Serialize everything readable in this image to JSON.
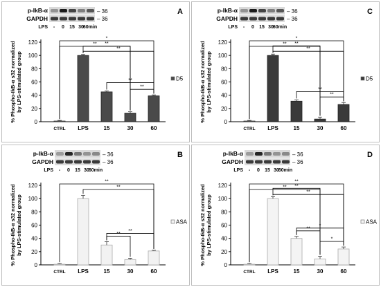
{
  "blot": {
    "phospho_label": "p-IkB-α",
    "gapdh_label": "GAPDH",
    "marker": "– 36",
    "lps_label": "LPS",
    "lanes": [
      "-",
      "0",
      "15",
      "30",
      "60min"
    ]
  },
  "chart_data": [
    {
      "panel": "A",
      "type": "bar",
      "categories": [
        "CTRL",
        "LPS",
        "15",
        "30",
        "60"
      ],
      "values": [
        1,
        100,
        45,
        13,
        39
      ],
      "errors": [
        1,
        1.5,
        1.5,
        2,
        1.5
      ],
      "ylabel": "% Phospho-IkB-α s32 normalized by LPS-stimulated group",
      "ylim": [
        0,
        120
      ],
      "yticks": [
        0,
        20,
        40,
        60,
        80,
        100,
        120
      ],
      "legend": "D5",
      "legend_position": "right",
      "bar_color": "#4a4a4a",
      "significance": [
        {
          "from": 0,
          "to": 4,
          "label": "*"
        },
        {
          "from": 0,
          "to": 3,
          "label": "**"
        },
        {
          "from": 1,
          "to": 4,
          "label": "**"
        },
        {
          "from": 1,
          "to": 3,
          "label": "**"
        },
        {
          "from": 2,
          "to": 4,
          "label": "**"
        },
        {
          "from": 3,
          "to": 4,
          "label": "**"
        }
      ]
    },
    {
      "panel": "B",
      "type": "bar",
      "categories": [
        "CTRL",
        "LPS",
        "15",
        "30",
        "60"
      ],
      "values": [
        1,
        100,
        30,
        8,
        21
      ],
      "errors": [
        1,
        5,
        5,
        2,
        1
      ],
      "ylabel": "% Phospho-IkB-α s32 normalized by LPS-stimulated group",
      "ylim": [
        0,
        120
      ],
      "yticks": [
        0,
        20,
        40,
        60,
        80,
        100,
        120
      ],
      "legend": "ASA",
      "legend_position": "right",
      "bar_color": "#f2f2f2",
      "significance": [
        {
          "from": 0,
          "to": 4,
          "label": "**"
        },
        {
          "from": 1,
          "to": 4,
          "label": "**"
        },
        {
          "from": 2,
          "to": 4,
          "label": "**"
        },
        {
          "from": 2,
          "to": 3,
          "label": "**"
        }
      ]
    },
    {
      "panel": "C",
      "type": "bar",
      "categories": [
        "CTRL",
        "LPS",
        "15",
        "30",
        "60"
      ],
      "values": [
        1,
        100,
        31,
        4,
        26
      ],
      "errors": [
        1,
        2,
        2,
        3,
        3
      ],
      "ylabel": "% Phospho-IkB-α s32 normalized by LPS-stimulated group",
      "ylim": [
        0,
        120
      ],
      "yticks": [
        0,
        20,
        40,
        60,
        80,
        100,
        120
      ],
      "legend": "D5",
      "legend_position": "right",
      "bar_color": "#3a3a3a",
      "significance": [
        {
          "from": 0,
          "to": 3,
          "label": "**"
        },
        {
          "from": 0,
          "to": 4,
          "label": "*"
        },
        {
          "from": 1,
          "to": 3,
          "label": "**"
        },
        {
          "from": 1,
          "to": 4,
          "label": "**"
        },
        {
          "from": 2,
          "to": 4,
          "label": "**"
        },
        {
          "from": 3,
          "to": 4,
          "label": "**"
        }
      ]
    },
    {
      "panel": "D",
      "type": "bar",
      "categories": [
        "CTRL",
        "LPS",
        "15",
        "30",
        "60"
      ],
      "values": [
        1,
        100,
        40,
        9,
        24
      ],
      "errors": [
        1,
        3,
        3,
        4,
        3
      ],
      "ylabel": "% Phospho-IkB-α s32 normalized by LPS-stimulated group",
      "ylim": [
        0,
        120
      ],
      "yticks": [
        0,
        20,
        40,
        60,
        80,
        100,
        120
      ],
      "legend": "ASA",
      "legend_position": "right",
      "bar_color": "#f4f4f4",
      "significance": [
        {
          "from": 0,
          "to": 3,
          "label": "**"
        },
        {
          "from": 0,
          "to": 4,
          "label": "**"
        },
        {
          "from": 1,
          "to": 3,
          "label": "**"
        },
        {
          "from": 1,
          "to": 4,
          "label": "**"
        },
        {
          "from": 2,
          "to": 4,
          "label": "*"
        },
        {
          "from": 2,
          "to": 3,
          "label": "**"
        },
        {
          "from": 3,
          "to": 4,
          "label": "*"
        }
      ]
    }
  ]
}
